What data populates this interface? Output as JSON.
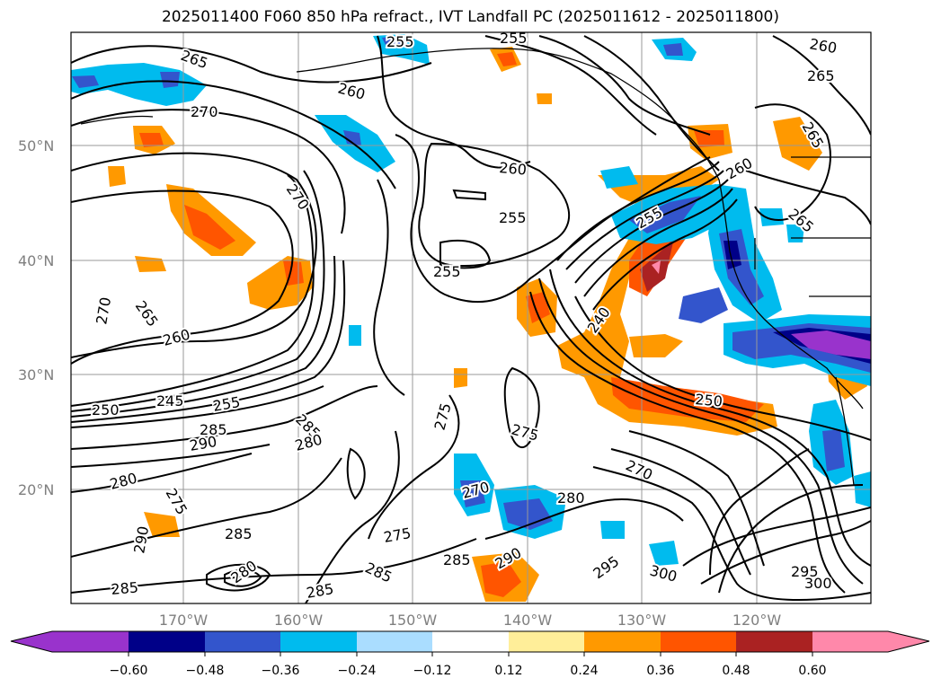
{
  "title": "2025011400 F060 850 hPa refract., IVT Landfall PC (2025011612 - 2025011800)",
  "lat_labels": [
    "50°N",
    "40°N",
    "30°N",
    "20°N"
  ],
  "lon_labels": [
    "170°W",
    "160°W",
    "150°W",
    "140°W",
    "130°W",
    "120°W"
  ],
  "contour_labels": [
    {
      "text": "265"
    },
    {
      "text": "255"
    },
    {
      "text": "255"
    },
    {
      "text": "260"
    },
    {
      "text": "265"
    },
    {
      "text": "260"
    },
    {
      "text": "270"
    },
    {
      "text": "270"
    },
    {
      "text": "260"
    },
    {
      "text": "255"
    },
    {
      "text": "255"
    },
    {
      "text": "260"
    },
    {
      "text": "265"
    },
    {
      "text": "265"
    },
    {
      "text": "265"
    },
    {
      "text": "270"
    },
    {
      "text": "260"
    },
    {
      "text": "255"
    },
    {
      "text": "240"
    },
    {
      "text": "250"
    },
    {
      "text": "250"
    },
    {
      "text": "245"
    },
    {
      "text": "255"
    },
    {
      "text": "285"
    },
    {
      "text": "285"
    },
    {
      "text": "290"
    },
    {
      "text": "280"
    },
    {
      "text": "275"
    },
    {
      "text": "275"
    },
    {
      "text": "270"
    },
    {
      "text": "270"
    },
    {
      "text": "280"
    },
    {
      "text": "280"
    },
    {
      "text": "275"
    },
    {
      "text": "290"
    },
    {
      "text": "285"
    },
    {
      "text": "285"
    },
    {
      "text": "275"
    },
    {
      "text": "285"
    },
    {
      "text": "280"
    },
    {
      "text": "290"
    },
    {
      "text": "285"
    },
    {
      "text": "295"
    },
    {
      "text": "300"
    },
    {
      "text": "295"
    },
    {
      "text": "300"
    },
    {
      "text": "285"
    }
  ],
  "colorbar": {
    "colors": [
      "#9933cc",
      "#000088",
      "#3355cc",
      "#00bbee",
      "#aaddff",
      "#ffffff",
      "#ffee99",
      "#ff9900",
      "#ff5500",
      "#aa2222",
      "#ff88aa"
    ],
    "tick_labels": [
      "−0.60",
      "−0.48",
      "−0.36",
      "−0.24",
      "−0.12",
      "0.12",
      "0.24",
      "0.36",
      "0.48",
      "0.60"
    ]
  }
}
